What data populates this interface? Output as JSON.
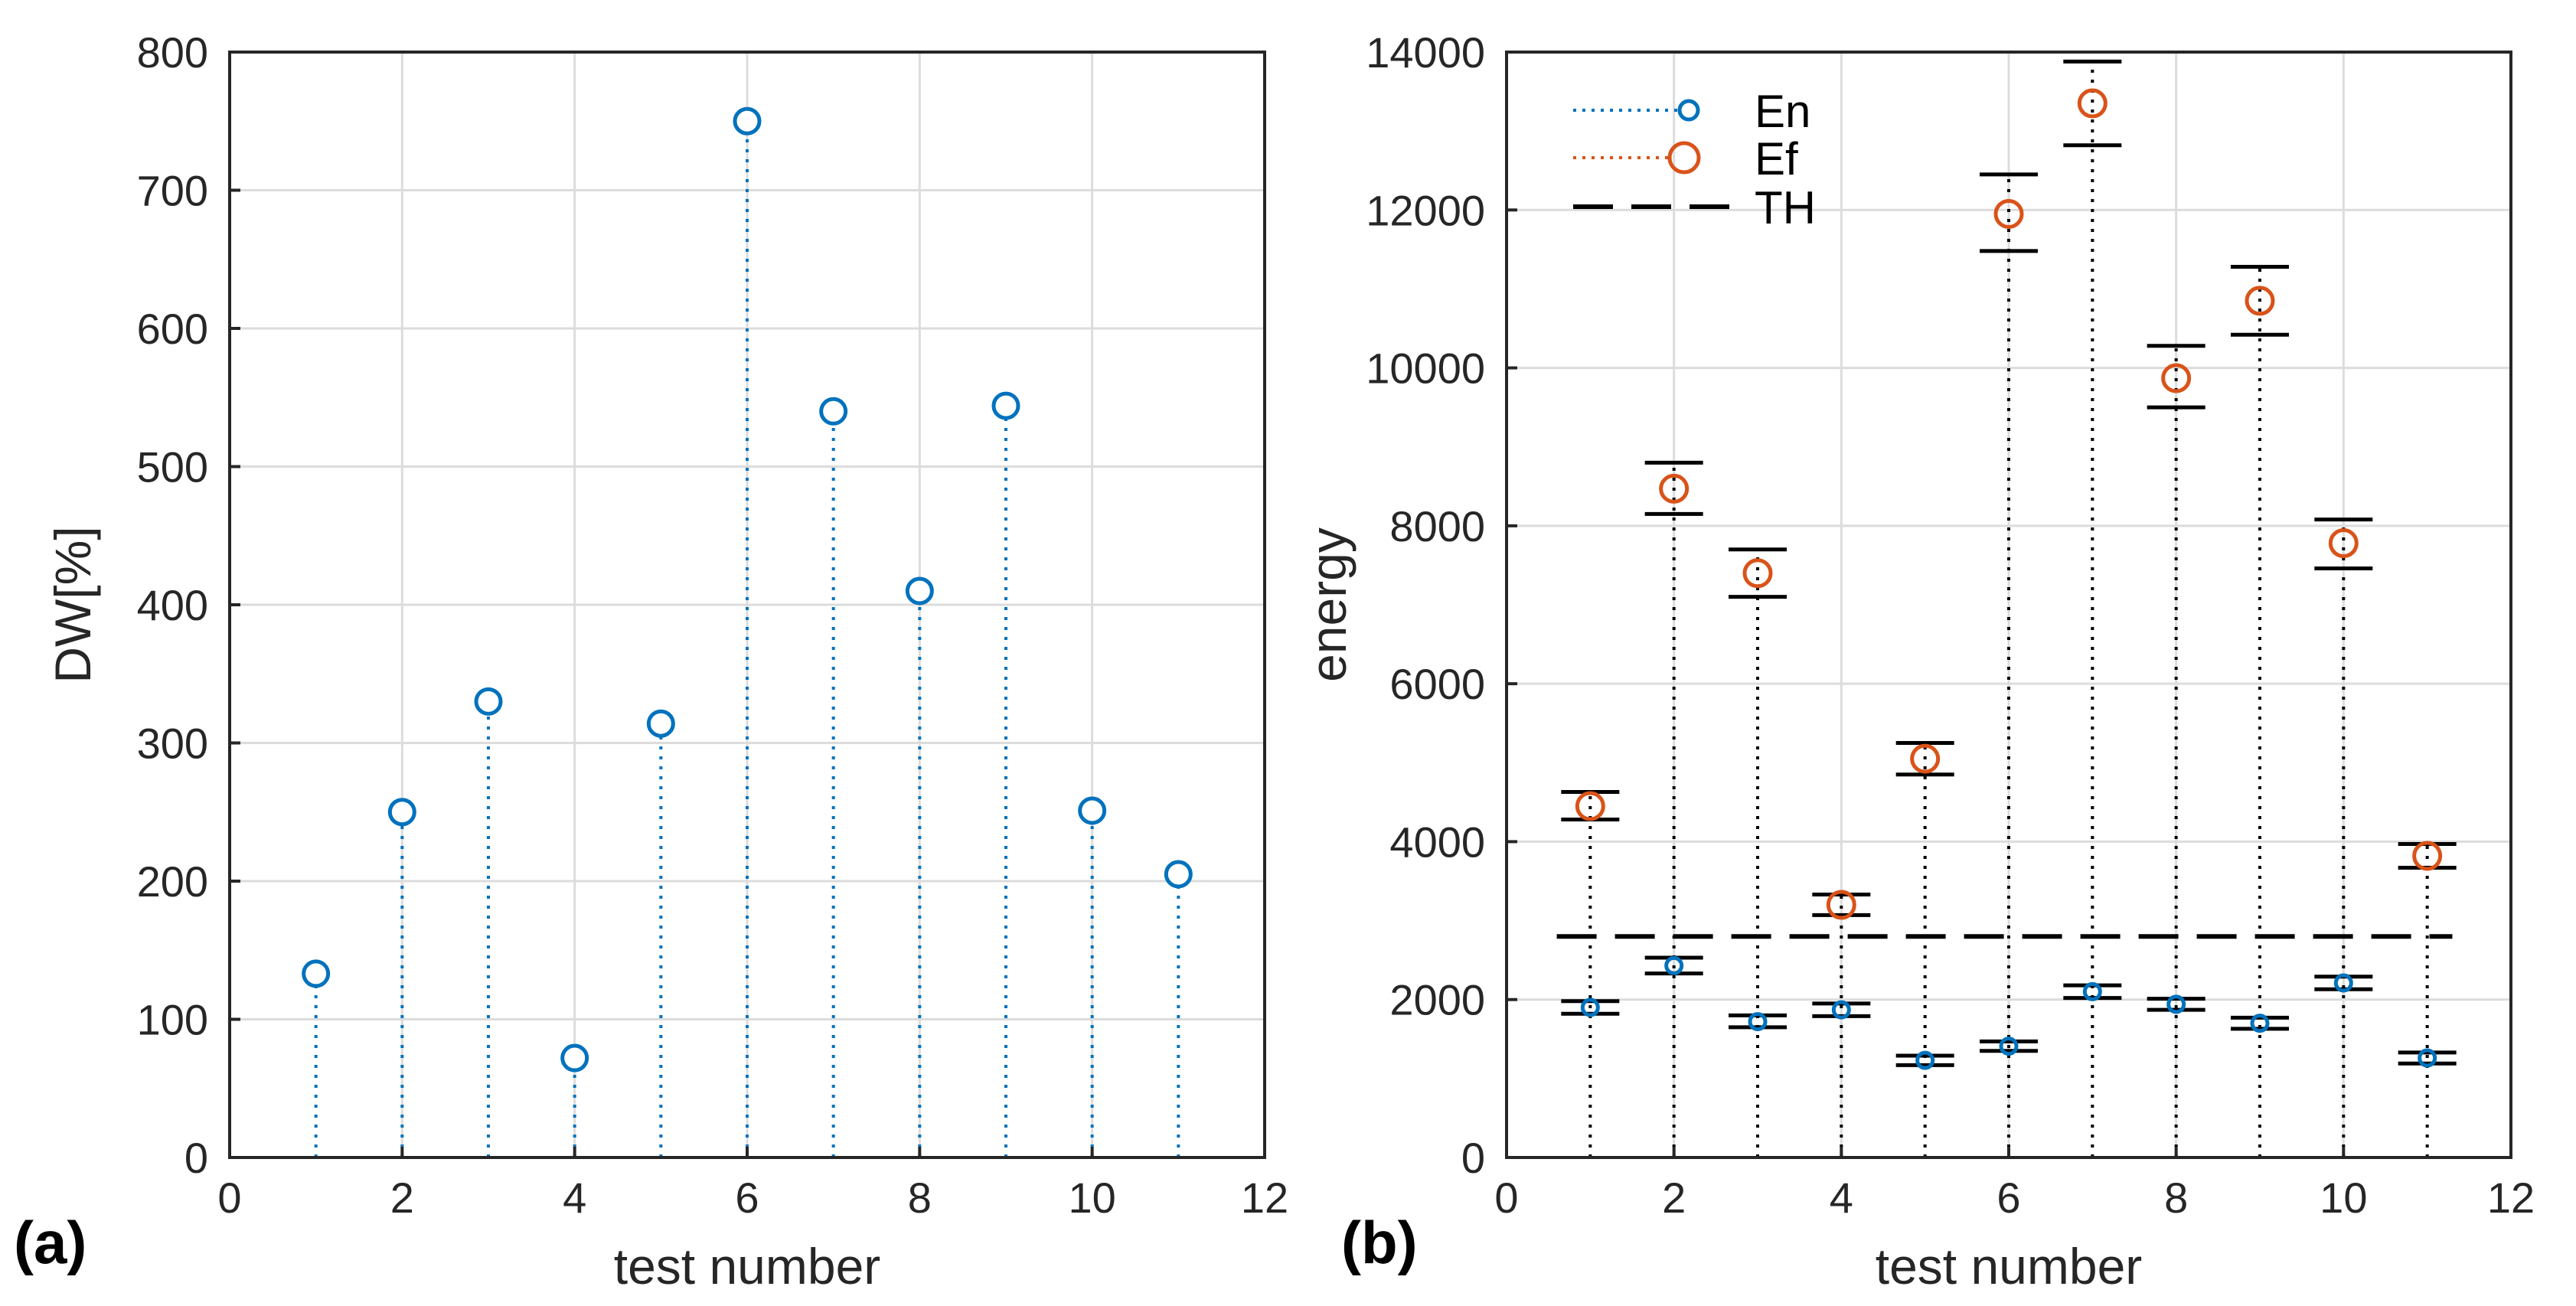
{
  "figure": {
    "panel_a_label": "(a)",
    "panel_b_label": "(b)"
  },
  "chart_data": [
    {
      "type": "stem",
      "title": "",
      "xlabel": "test number",
      "ylabel": "DW[%]",
      "xlim": [
        0,
        12
      ],
      "ylim": [
        0,
        800
      ],
      "xticks": [
        0,
        2,
        4,
        6,
        8,
        10,
        12
      ],
      "yticks": [
        0,
        100,
        200,
        300,
        400,
        500,
        600,
        700,
        800
      ],
      "grid": true,
      "series": [
        {
          "name": "DW",
          "color": "#0072BD",
          "x": [
            1,
            2,
            3,
            4,
            5,
            6,
            7,
            8,
            9,
            10,
            11
          ],
          "values": [
            133,
            250,
            330,
            72,
            314,
            750,
            540,
            410,
            544,
            251,
            205
          ]
        }
      ]
    },
    {
      "type": "stem",
      "title": "",
      "xlabel": "test number",
      "ylabel": "energy",
      "xlim": [
        0,
        12
      ],
      "ylim": [
        0,
        14000
      ],
      "xticks": [
        0,
        2,
        4,
        6,
        8,
        10,
        12
      ],
      "yticks": [
        0,
        2000,
        4000,
        6000,
        8000,
        10000,
        12000,
        14000
      ],
      "grid": true,
      "legend": "top-left",
      "threshold": {
        "name": "TH",
        "value": 2800,
        "x_range": [
          0.6,
          11.3
        ],
        "color": "#000000"
      },
      "series": [
        {
          "name": "En",
          "color": "#0072BD",
          "x": [
            1,
            2,
            3,
            4,
            5,
            6,
            7,
            8,
            9,
            10,
            11
          ],
          "values": [
            1900,
            2430,
            1720,
            1870,
            1230,
            1410,
            2100,
            1940,
            1700,
            2210,
            1260
          ],
          "error_low": [
            1820,
            2330,
            1650,
            1790,
            1170,
            1350,
            2020,
            1870,
            1630,
            2130,
            1190
          ],
          "error_high": [
            1980,
            2530,
            1800,
            1950,
            1290,
            1470,
            2180,
            2010,
            1770,
            2290,
            1330
          ]
        },
        {
          "name": "Ef",
          "color": "#D95319",
          "x": [
            1,
            2,
            3,
            4,
            5,
            6,
            7,
            8,
            9,
            10,
            11
          ],
          "values": [
            4450,
            8470,
            7400,
            3200,
            5050,
            11950,
            13350,
            9870,
            10850,
            7780,
            3820
          ],
          "error_low": [
            4280,
            8150,
            7100,
            3070,
            4850,
            11480,
            12820,
            9500,
            10420,
            7460,
            3670
          ],
          "error_high": [
            4630,
            8800,
            7700,
            3330,
            5250,
            12450,
            13880,
            10280,
            11280,
            8080,
            3970
          ]
        }
      ]
    }
  ]
}
